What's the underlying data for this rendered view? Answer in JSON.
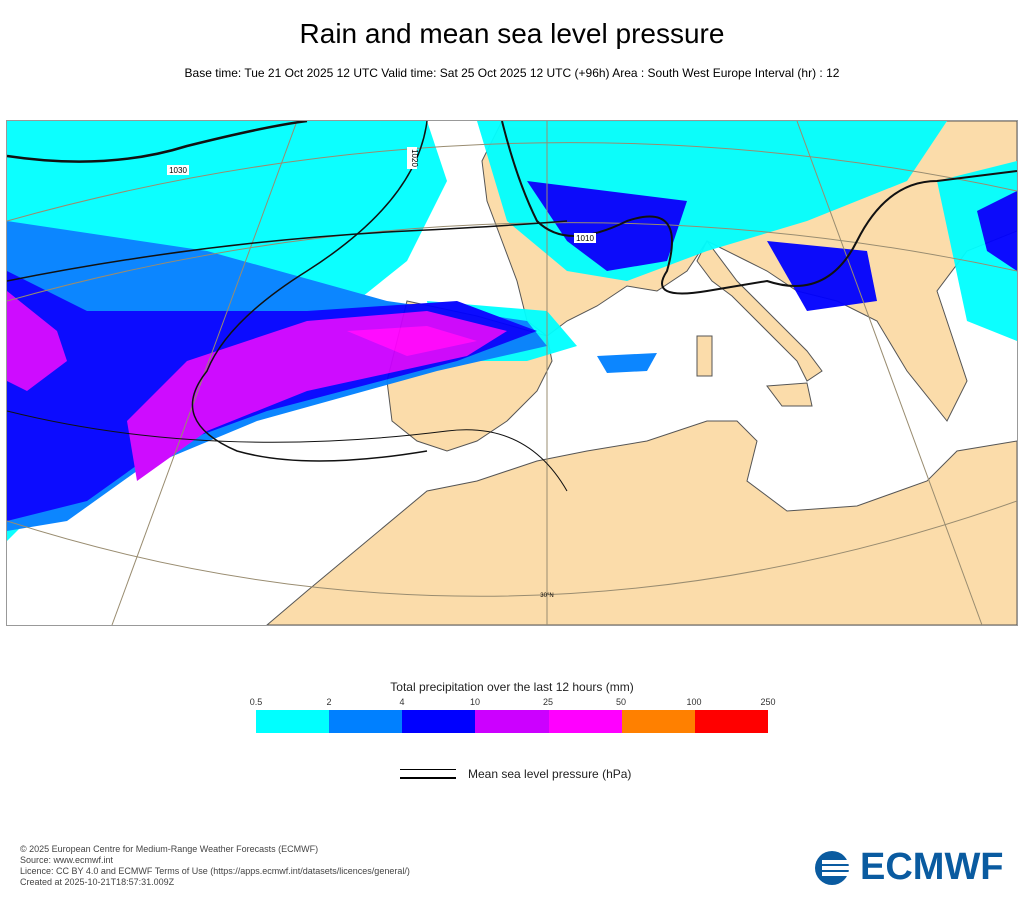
{
  "title": "Rain and mean sea level pressure",
  "subtitle": "Base time: Tue 21 Oct 2025 12 UTC Valid time: Sat 25 Oct 2025 12 UTC (+96h) Area : South West Europe Interval (hr) : 12",
  "map": {
    "isobar_labels": [
      "1030",
      "1020",
      "1010"
    ],
    "latitude_label": "30°N",
    "colors": {
      "land": "#fbdcaa",
      "sea": "#ffffff"
    }
  },
  "colorbar": {
    "title": "Total precipitation over the last 12 hours (mm)",
    "ticks": [
      "0.5",
      "2",
      "4",
      "10",
      "25",
      "50",
      "100",
      "250"
    ],
    "colors": [
      "#00ffff",
      "#0080ff",
      "#0000ff",
      "#cc00ff",
      "#ff00ff",
      "#ff8000",
      "#ff0000"
    ]
  },
  "legend": {
    "pressure_label": "Mean sea level pressure (hPa)"
  },
  "footer": [
    "© 2025 European Centre for Medium-Range Weather Forecasts (ECMWF)",
    "Source: www.ecmwf.int",
    "Licence: CC BY 4.0 and ECMWF Terms of Use (https://apps.ecmwf.int/datasets/licences/general/)",
    "Created at 2025-10-21T18:57:31.009Z"
  ],
  "logo_text": "ECMWF"
}
